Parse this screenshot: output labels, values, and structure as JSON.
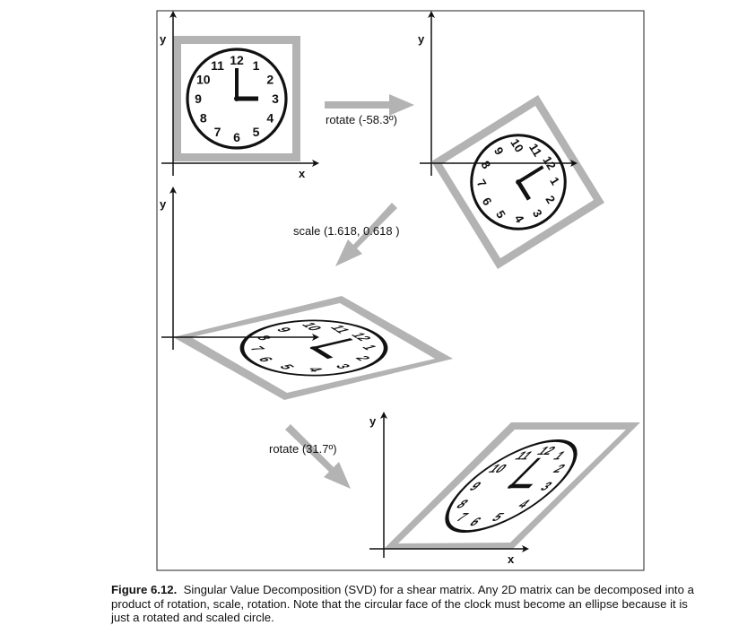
{
  "figure": {
    "axes": {
      "panel1": {
        "x": "x",
        "y": "y"
      },
      "panel2": {
        "y": "y"
      },
      "panel3": {
        "y": "y"
      },
      "panel4": {
        "x": "x",
        "y": "y"
      }
    },
    "steps": {
      "rotate1": "rotate (-58.3º)",
      "scale": "scale (1.618, 0.618 )",
      "rotate2": "rotate (31.7º)"
    },
    "clock_numbers": [
      "12",
      "1",
      "2",
      "3",
      "4",
      "5",
      "6",
      "7",
      "8",
      "9",
      "10",
      "11"
    ],
    "transforms": {
      "rotate1_deg": -58.3,
      "scale": [
        1.618,
        0.618
      ],
      "rotate2_deg": 31.7
    },
    "colors": {
      "frame_gray": "#b3b3b3",
      "arrow_gray": "#b3b3b3",
      "ink": "#111111"
    }
  },
  "caption": {
    "label": "Figure 6.12.",
    "text": "Singular Value Decomposition (SVD) for a shear matrix. Any 2D matrix can be decomposed into a product of rotation, scale, rotation. Note that the circular face of the clock must become an ellipse because it is just a rotated and scaled circle."
  }
}
